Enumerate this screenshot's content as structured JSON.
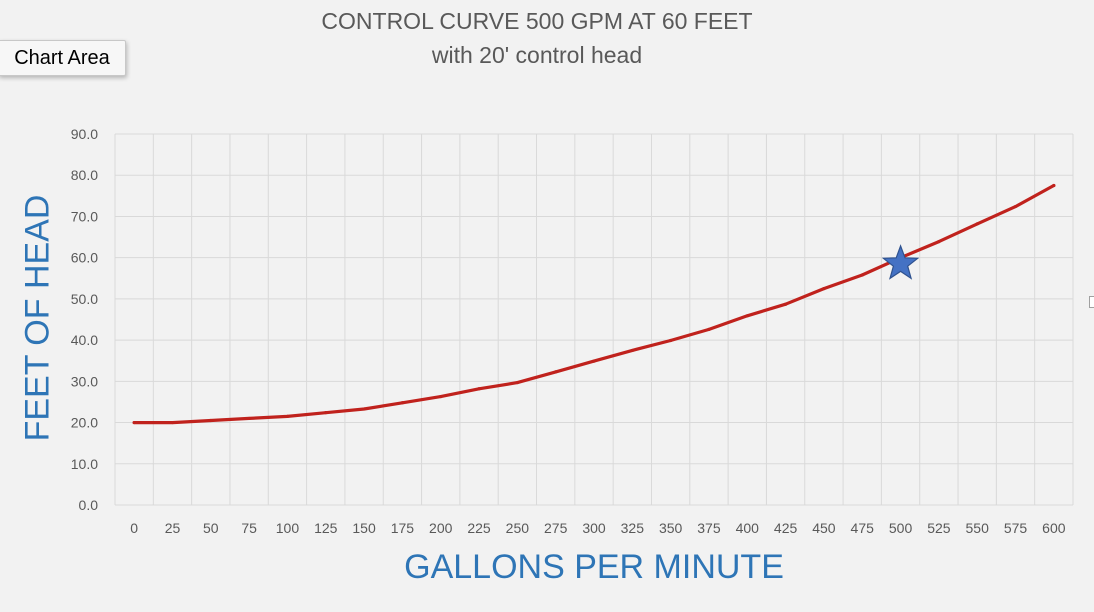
{
  "tooltip": {
    "label": "Chart Area"
  },
  "chart_data": {
    "type": "line",
    "title": "CONTROL CURVE 500 GPM AT 60 FEET",
    "subtitle": "with 20' control head",
    "xlabel": "GALLONS PER MINUTE",
    "ylabel": "FEET OF HEAD",
    "x": [
      0,
      25,
      50,
      75,
      100,
      125,
      150,
      175,
      200,
      225,
      250,
      275,
      300,
      325,
      350,
      375,
      400,
      425,
      450,
      475,
      500,
      525,
      550,
      575,
      600
    ],
    "series": [
      {
        "values": [
          20.0,
          20.0,
          20.5,
          21.0,
          21.5,
          22.4,
          23.3,
          24.8,
          26.3,
          28.2,
          29.7,
          32.3,
          34.9,
          37.5,
          39.9,
          42.6,
          45.9,
          48.7,
          52.5,
          55.8,
          60.0,
          63.9,
          68.2,
          72.4,
          77.5
        ],
        "color": "#c0221d"
      }
    ],
    "marker": {
      "x": 500,
      "y": 58.5,
      "shape": "star",
      "color": "#4472c4"
    },
    "ylim": [
      0,
      90
    ],
    "yticks": [
      "0.0",
      "10.0",
      "20.0",
      "30.0",
      "40.0",
      "50.0",
      "60.0",
      "70.0",
      "80.0",
      "90.0"
    ],
    "xticks": [
      "0",
      "25",
      "50",
      "75",
      "100",
      "125",
      "150",
      "175",
      "200",
      "225",
      "250",
      "275",
      "300",
      "325",
      "350",
      "375",
      "400",
      "425",
      "450",
      "475",
      "500",
      "525",
      "550",
      "575",
      "600"
    ],
    "grid": true
  }
}
